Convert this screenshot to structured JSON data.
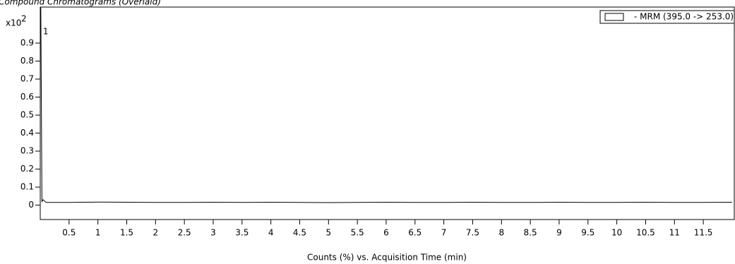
{
  "chart_data": {
    "type": "line",
    "title": "Compound Chromatograms (Overlaid)",
    "x_label": "Counts (%) vs. Acquisition Time (min)",
    "y_multiplier": {
      "base": "x10",
      "exponent": "2"
    },
    "annotations": [
      "1"
    ],
    "x": [
      0.01,
      0.03,
      0.05,
      0.1,
      0.5,
      1,
      1.5,
      2,
      2.5,
      3,
      3.5,
      4,
      4.5,
      5,
      5.5,
      6,
      6.5,
      7,
      7.5,
      8,
      8.5,
      9,
      9.5,
      10,
      10.5,
      11,
      11.5,
      12
    ],
    "series": [
      {
        "name": "- MRM (395.0 -> 253.0)",
        "color": "#000000",
        "values": [
          1.1,
          0.02,
          0.03,
          0.015,
          0.015,
          0.017,
          0.016,
          0.015,
          0.015,
          0.016,
          0.015,
          0.016,
          0.015,
          0.014,
          0.015,
          0.016,
          0.015,
          0.015,
          0.016,
          0.015,
          0.015,
          0.016,
          0.015,
          0.015,
          0.016,
          0.015,
          0.015,
          0.016
        ]
      }
    ],
    "xlim": [
      0,
      12.05
    ],
    "ylim": [
      -0.08,
      1.1
    ],
    "xticks": [
      0.5,
      1,
      1.5,
      2,
      2.5,
      3,
      3.5,
      4,
      4.5,
      5,
      5.5,
      6,
      6.5,
      7,
      7.5,
      8,
      8.5,
      9,
      9.5,
      10,
      10.5,
      11,
      11.5
    ],
    "yticks": [
      0,
      0.1,
      0.2,
      0.3,
      0.4,
      0.5,
      0.6,
      0.7,
      0.8,
      0.9
    ],
    "legend": "top-right",
    "grid": false
  }
}
